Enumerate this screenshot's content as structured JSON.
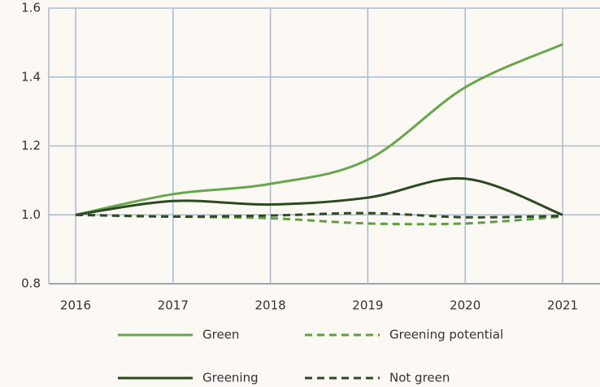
{
  "chart_data": {
    "type": "line",
    "categories": [
      "2016",
      "2017",
      "2018",
      "2019",
      "2020",
      "2021"
    ],
    "series": [
      {
        "name": "Green",
        "color": "#68a64b",
        "dash": false,
        "values": [
          1.0,
          1.06,
          1.09,
          1.16,
          1.37,
          1.495
        ]
      },
      {
        "name": "Greening potential",
        "color": "#5f9f41",
        "dash": true,
        "values": [
          1.0,
          0.995,
          0.99,
          0.975,
          0.975,
          0.995
        ]
      },
      {
        "name": "Greening",
        "color": "#2c4a22",
        "dash": false,
        "values": [
          1.0,
          1.04,
          1.03,
          1.05,
          1.105,
          1.0
        ]
      },
      {
        "name": "Not green",
        "color": "#2e4a26",
        "dash": true,
        "values": [
          1.0,
          0.995,
          0.998,
          1.005,
          0.993,
          0.997
        ]
      }
    ],
    "ylim": [
      0.8,
      1.6
    ],
    "yticks": [
      0.8,
      {
        "value": 1,
        "label": "1.0"
      },
      1.2,
      1.4,
      1.6
    ],
    "grid": true
  }
}
